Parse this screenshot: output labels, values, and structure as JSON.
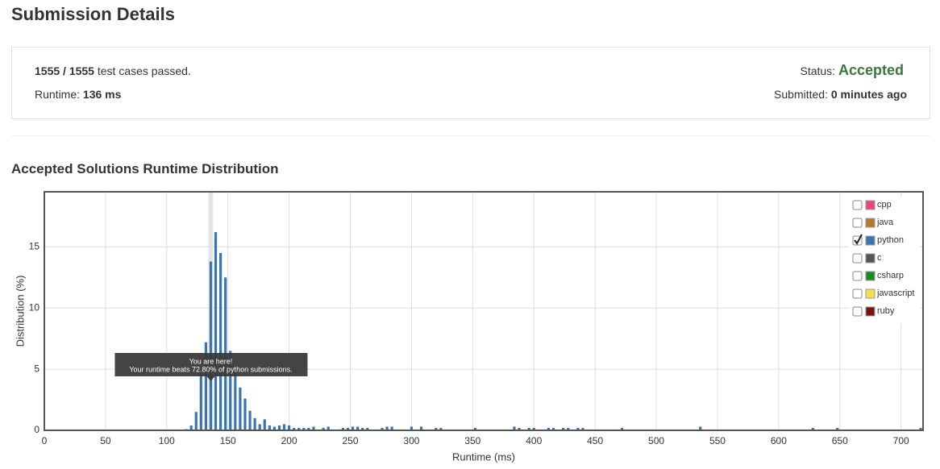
{
  "header": {
    "title": "Submission Details"
  },
  "summary": {
    "cases_passed": "1555 / 1555",
    "cases_text": "test cases passed.",
    "runtime_label": "Runtime:",
    "runtime_value": "136 ms",
    "status_label": "Status:",
    "status_value": "Accepted",
    "submitted_label": "Submitted:",
    "submitted_value": "0 minutes ago"
  },
  "section_title": "Accepted Solutions Runtime Distribution",
  "chart_data": {
    "type": "bar",
    "x_label": "Runtime (ms)",
    "y_label": "Distribution (%)",
    "xlim": [
      0,
      718
    ],
    "ylim": [
      0,
      19.5
    ],
    "xticks": [
      0,
      50,
      100,
      150,
      200,
      250,
      300,
      350,
      400,
      450,
      500,
      550,
      600,
      650,
      700
    ],
    "yticks": [
      0,
      5,
      10,
      15
    ],
    "grid": true,
    "color": "#3a75ad",
    "highlight_x": 136,
    "annotation": {
      "title": "You are here!",
      "text": "Your runtime beats 72.80% of python submissions."
    },
    "x": [
      116,
      120,
      124,
      128,
      132,
      136,
      140,
      144,
      148,
      152,
      156,
      160,
      164,
      168,
      172,
      176,
      180,
      184,
      188,
      192,
      196,
      200,
      204,
      208,
      212,
      216,
      220,
      228,
      232,
      244,
      248,
      252,
      256,
      260,
      264,
      276,
      280,
      284,
      300,
      308,
      320,
      324,
      352,
      384,
      388,
      396,
      400,
      412,
      416,
      424,
      428,
      436,
      440,
      472,
      536,
      628,
      648,
      716
    ],
    "values": [
      0.1,
      0.4,
      1.5,
      4.9,
      7.2,
      13.8,
      16.2,
      14.5,
      12.5,
      6.5,
      4.9,
      3.5,
      2.6,
      1.6,
      1.0,
      0.5,
      0.9,
      0.4,
      0.3,
      0.4,
      0.5,
      0.4,
      0.2,
      0.2,
      0.2,
      0.2,
      0.3,
      0.2,
      0.3,
      0.2,
      0.2,
      0.3,
      0.3,
      0.2,
      0.2,
      0.2,
      0.3,
      0.3,
      0.3,
      0.3,
      0.2,
      0.2,
      0.2,
      0.3,
      0.2,
      0.2,
      0.2,
      0.2,
      0.2,
      0.2,
      0.2,
      0.2,
      0.2,
      0.2,
      0.3,
      0.2,
      0.2,
      0.2
    ],
    "legend_position": "top-right",
    "legend": [
      {
        "name": "cpp",
        "color": "#e8457c",
        "checked": false
      },
      {
        "name": "java",
        "color": "#b8782a",
        "checked": false
      },
      {
        "name": "python",
        "color": "#3a75ad",
        "checked": true
      },
      {
        "name": "c",
        "color": "#555555",
        "checked": false
      },
      {
        "name": "csharp",
        "color": "#1c8a1c",
        "checked": false
      },
      {
        "name": "javascript",
        "color": "#f0e050",
        "checked": false
      },
      {
        "name": "ruby",
        "color": "#7a1414",
        "checked": false
      }
    ]
  }
}
